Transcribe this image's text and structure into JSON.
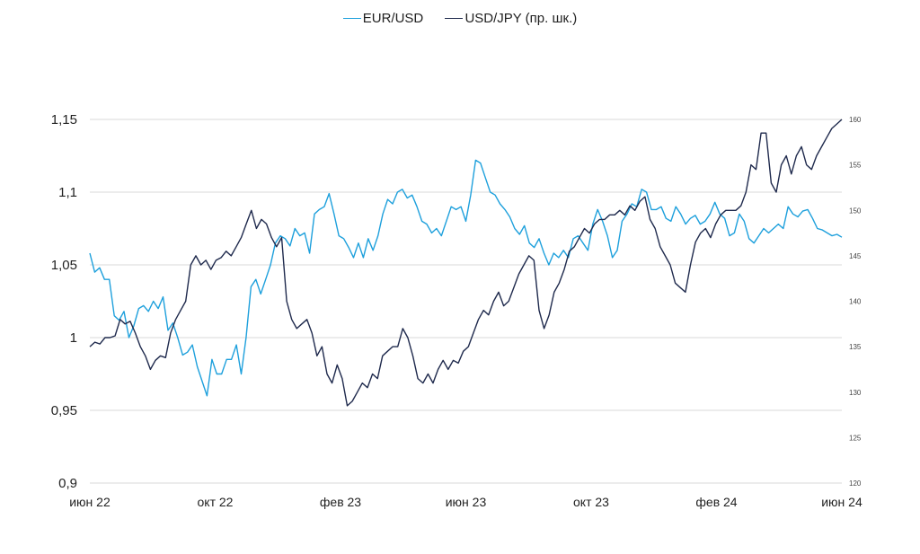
{
  "chart_data": {
    "type": "line",
    "title": "",
    "legend_position": "top-center",
    "x_tick_labels": [
      "июн 22",
      "окт 22",
      "фев 23",
      "июн 23",
      "окт 23",
      "фев 24",
      "июн 24"
    ],
    "x_range": [
      "2022-06",
      "2024-06"
    ],
    "y_left": {
      "ticks": [
        "0,9",
        "0,95",
        "1",
        "1,05",
        "1,1",
        "1,15"
      ],
      "tick_values": [
        0.9,
        0.95,
        1.0,
        1.05,
        1.1,
        1.15
      ],
      "ylim": [
        0.9,
        1.15
      ]
    },
    "y_right": {
      "ticks": [
        "120",
        "125",
        "130",
        "135",
        "140",
        "145",
        "150",
        "155",
        "160"
      ],
      "tick_values": [
        120,
        125,
        130,
        135,
        140,
        145,
        150,
        155,
        160
      ],
      "ylim": [
        120,
        160
      ]
    },
    "grid": true,
    "series": [
      {
        "name": "EUR/USD",
        "axis": "left",
        "color": "#1ea0dc",
        "values": [
          1.058,
          1.045,
          1.048,
          1.04,
          1.04,
          1.015,
          1.012,
          1.018,
          1.0,
          1.008,
          1.02,
          1.022,
          1.018,
          1.025,
          1.02,
          1.028,
          1.005,
          1.01,
          1.0,
          0.988,
          0.99,
          0.995,
          0.98,
          0.97,
          0.96,
          0.985,
          0.975,
          0.975,
          0.985,
          0.985,
          0.995,
          0.975,
          1.0,
          1.035,
          1.04,
          1.03,
          1.04,
          1.05,
          1.065,
          1.07,
          1.068,
          1.063,
          1.075,
          1.07,
          1.072,
          1.058,
          1.085,
          1.088,
          1.09,
          1.099,
          1.085,
          1.07,
          1.068,
          1.062,
          1.055,
          1.065,
          1.055,
          1.068,
          1.06,
          1.07,
          1.085,
          1.095,
          1.092,
          1.1,
          1.102,
          1.096,
          1.098,
          1.09,
          1.08,
          1.078,
          1.072,
          1.075,
          1.07,
          1.08,
          1.09,
          1.088,
          1.09,
          1.08,
          1.098,
          1.122,
          1.12,
          1.11,
          1.1,
          1.098,
          1.092,
          1.088,
          1.083,
          1.075,
          1.071,
          1.077,
          1.065,
          1.062,
          1.068,
          1.058,
          1.05,
          1.058,
          1.055,
          1.06,
          1.055,
          1.068,
          1.07,
          1.065,
          1.06,
          1.078,
          1.088,
          1.08,
          1.07,
          1.055,
          1.06,
          1.08,
          1.085,
          1.092,
          1.09,
          1.102,
          1.1,
          1.088,
          1.088,
          1.09,
          1.082,
          1.08,
          1.09,
          1.085,
          1.078,
          1.082,
          1.084,
          1.078,
          1.08,
          1.085,
          1.093,
          1.085,
          1.082,
          1.07,
          1.072,
          1.085,
          1.08,
          1.068,
          1.065,
          1.07,
          1.075,
          1.072,
          1.075,
          1.078,
          1.075,
          1.09,
          1.085,
          1.083,
          1.087,
          1.088,
          1.082,
          1.075,
          1.074,
          1.072,
          1.07,
          1.071,
          1.069
        ]
      },
      {
        "name": "USD/JPY (пр. шк.)",
        "axis": "right",
        "color": "#1f2a4d",
        "values": [
          135.0,
          135.5,
          135.3,
          136.0,
          136.0,
          136.2,
          138.0,
          137.5,
          137.8,
          136.5,
          135.0,
          134.0,
          132.5,
          133.5,
          134.0,
          133.8,
          136.5,
          138.0,
          139.0,
          140.0,
          144.0,
          145.0,
          144.0,
          144.5,
          143.5,
          144.5,
          144.8,
          145.5,
          145.0,
          146.0,
          147.0,
          148.5,
          150.0,
          148.0,
          149.0,
          148.5,
          147.0,
          146.0,
          147.0,
          140.0,
          138.0,
          137.0,
          137.5,
          138.0,
          136.5,
          134.0,
          135.0,
          132.0,
          131.0,
          133.0,
          131.5,
          128.5,
          129.0,
          130.0,
          131.0,
          130.5,
          132.0,
          131.5,
          134.0,
          134.5,
          135.0,
          135.0,
          137.0,
          136.0,
          134.0,
          131.5,
          131.0,
          132.0,
          131.0,
          132.5,
          133.5,
          132.5,
          133.5,
          133.2,
          134.5,
          135.0,
          136.5,
          138.0,
          139.0,
          138.5,
          140.0,
          141.0,
          139.5,
          140.0,
          141.5,
          143.0,
          144.0,
          145.0,
          144.5,
          139.0,
          137.0,
          138.5,
          141.0,
          142.0,
          143.5,
          145.5,
          146.0,
          147.0,
          148.0,
          147.5,
          148.5,
          149.0,
          149.0,
          149.5,
          149.5,
          150.0,
          149.5,
          150.5,
          150.0,
          151.0,
          151.5,
          149.0,
          148.0,
          146.0,
          145.0,
          144.0,
          142.0,
          141.5,
          141.0,
          144.0,
          146.5,
          147.5,
          148.0,
          147.0,
          148.5,
          149.5,
          150.0,
          150.0,
          150.0,
          150.5,
          152.0,
          155.0,
          154.5,
          158.5,
          158.5,
          153.0,
          152.0,
          155.0,
          156.0,
          154.0,
          156.0,
          157.0,
          155.0,
          154.5,
          156.0,
          157.0,
          158.0,
          159.0,
          159.5,
          160.0
        ]
      }
    ]
  },
  "legend": {
    "items": [
      {
        "label": "EUR/USD",
        "color": "#1ea0dc"
      },
      {
        "label": "USD/JPY (пр. шк.)",
        "color": "#1f2a4d"
      }
    ]
  }
}
